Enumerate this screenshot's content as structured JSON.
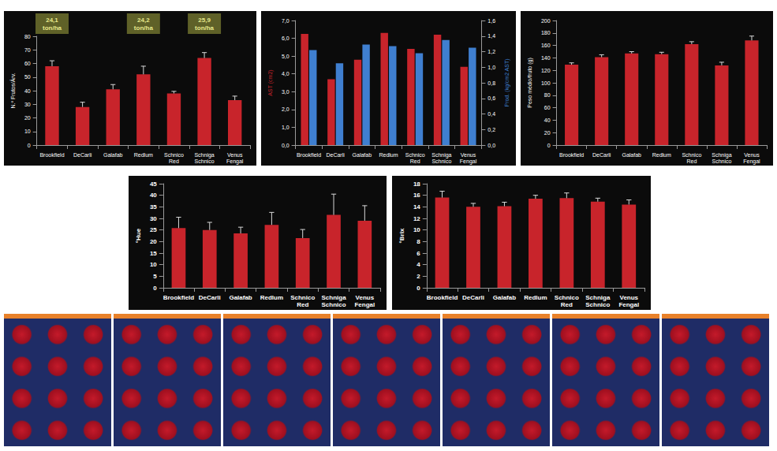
{
  "chart_data": [
    {
      "type": "bar",
      "categories": [
        "Brookfield",
        "DeCarli",
        "Galafab",
        "Redlum",
        "Schnico Red",
        "Schniga Schnico",
        "Venus Fengal"
      ],
      "series": [
        {
          "name": "N.º Frutos/Árv.",
          "color": "#c8242b",
          "values": [
            58,
            28,
            41,
            52,
            38,
            64,
            33
          ],
          "errors": [
            4,
            3.5,
            3.5,
            6,
            1.5,
            4,
            3
          ]
        }
      ],
      "ylim": [
        0,
        80
      ],
      "yticks": [
        0,
        10,
        20,
        30,
        40,
        50,
        60,
        70,
        80
      ],
      "grid": false,
      "annotations": [
        {
          "category": "Brookfield",
          "text": "24,1 ton/ha"
        },
        {
          "category": "Redlum",
          "text": "24,2 ton/ha"
        },
        {
          "category": "Schniga Schnico",
          "text": "25,9 ton/ha"
        }
      ]
    },
    {
      "type": "bar",
      "categories": [
        "Brookfield",
        "DeCarli",
        "Galafab",
        "Redlum",
        "Schnico Red",
        "Schniga Schnico",
        "Venus Fengal"
      ],
      "series": [
        {
          "name": "AST (cm2)",
          "color": "#c8242b",
          "values": [
            6.25,
            3.7,
            4.8,
            6.3,
            5.4,
            6.2,
            4.4
          ]
        },
        {
          "name": "Prod. (kg/cm2 AST)",
          "color": "#3f7fd0",
          "axis": "y2",
          "values": [
            1.22,
            1.05,
            1.29,
            1.27,
            1.18,
            1.35,
            1.25
          ]
        }
      ],
      "ylim": [
        0,
        7
      ],
      "yticks": [
        {
          "value": 0,
          "label": "0,0"
        },
        {
          "value": 1,
          "label": "1,0"
        },
        {
          "value": 2,
          "label": "2,0"
        },
        {
          "value": 3,
          "label": "3,0"
        },
        {
          "value": 4,
          "label": "4,0"
        },
        {
          "value": 5,
          "label": "5,0"
        },
        {
          "value": 6,
          "label": "6,0"
        },
        {
          "value": 7,
          "label": "7,0"
        }
      ],
      "y2lim": [
        0,
        1.6
      ],
      "y2ticks": [
        {
          "value": 0,
          "label": "0,0"
        },
        {
          "value": 0.2,
          "label": "0,2"
        },
        {
          "value": 0.4,
          "label": "0,4"
        },
        {
          "value": 0.6,
          "label": "0,6"
        },
        {
          "value": 0.8,
          "label": "0,8"
        },
        {
          "value": 1,
          "label": "1,0"
        },
        {
          "value": 1.2,
          "label": "1,2"
        },
        {
          "value": 1.4,
          "label": "1,4"
        },
        {
          "value": 1.6,
          "label": "1,6"
        }
      ],
      "grid": false
    },
    {
      "type": "bar",
      "categories": [
        "Brookfield",
        "DeCarli",
        "Galafab",
        "Redlum",
        "Schnico Red",
        "Schniga Schnico",
        "Venus Fengal"
      ],
      "series": [
        {
          "name": "Peso médio/fruto (g)",
          "color": "#c8242b",
          "values": [
            129,
            141,
            147,
            146,
            162,
            128,
            168
          ],
          "errors": [
            3,
            4,
            3,
            3,
            4,
            5,
            7
          ]
        }
      ],
      "ylim": [
        0,
        200
      ],
      "yticks": [
        0,
        20,
        40,
        60,
        80,
        100,
        120,
        140,
        160,
        180,
        200
      ],
      "grid": false
    },
    {
      "type": "bar",
      "categories": [
        "Brookfield",
        "DeCarli",
        "Galafab",
        "Redlum",
        "Schnico Red",
        "Schniga Schnico",
        "Venus Fengal"
      ],
      "series": [
        {
          "name": "°Hue",
          "color": "#c8242b",
          "values": [
            25.8,
            25,
            23.5,
            27.2,
            21.5,
            31.5,
            29
          ],
          "errors": [
            4.7,
            3.3,
            2.7,
            5.4,
            3.7,
            9,
            6.5
          ]
        }
      ],
      "ylim": [
        0,
        45
      ],
      "yticks": [
        0,
        5,
        10,
        15,
        20,
        25,
        30,
        35,
        40,
        45
      ],
      "grid": false
    },
    {
      "type": "bar",
      "categories": [
        "Brookfield",
        "DeCarli",
        "Galafab",
        "Redlum",
        "Schnico Red",
        "Schniga Schnico",
        "Venus Fengal"
      ],
      "series": [
        {
          "name": "°Brix",
          "color": "#c8242b",
          "values": [
            15.6,
            14,
            14.1,
            15.4,
            15.5,
            14.9,
            14.4
          ],
          "errors": [
            1.1,
            0.6,
            0.7,
            0.6,
            0.9,
            0.6,
            0.8
          ]
        }
      ],
      "ylim": [
        0,
        18
      ],
      "yticks": [
        0,
        2,
        4,
        6,
        8,
        10,
        12,
        14,
        16,
        18
      ],
      "grid": false
    }
  ]
}
